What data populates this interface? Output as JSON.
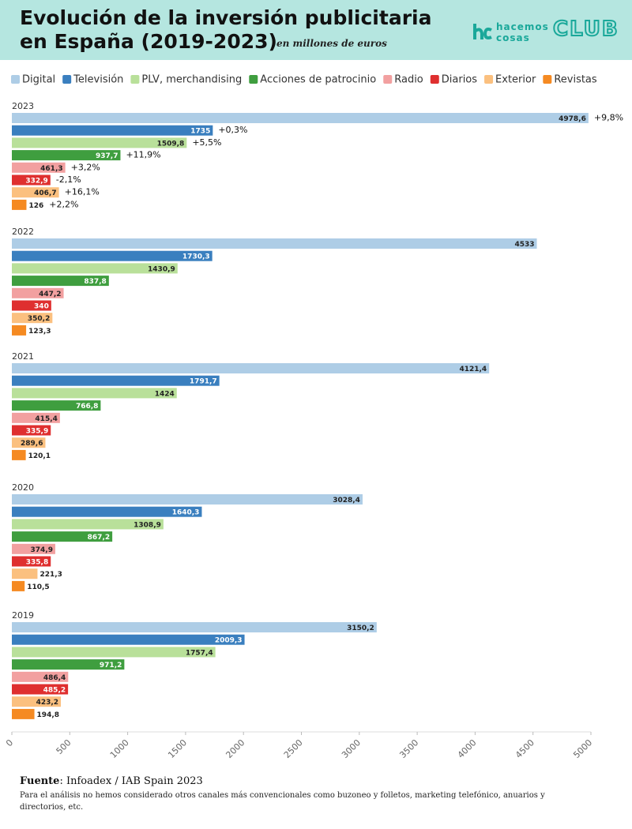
{
  "header": {
    "logo_lines": [
      "hacemos",
      "cosas"
    ],
    "club": "CLUB"
  },
  "chart_data": {
    "type": "hbar_grouped",
    "title_lines": [
      "Evolución de la inversión publicitaria",
      "en España (2019-2023)"
    ],
    "subtitle": "en millones de euros",
    "categories": [
      "2023",
      "2022",
      "2021",
      "2020",
      "2019"
    ],
    "series": [
      {
        "name": "Digital",
        "color": "#aecde6",
        "values": [
          4978.6,
          4533,
          4121.4,
          3028.4,
          3150.2
        ],
        "value_labels": [
          "4978,6",
          "4533",
          "4121,4",
          "3028,4",
          "3150,2"
        ],
        "annotations": [
          "+9,8%"
        ]
      },
      {
        "name": "Televisión",
        "color": "#3a7fbf",
        "values": [
          1735,
          1730.3,
          1791.7,
          1640.3,
          2009.3
        ],
        "value_labels": [
          "1735",
          "1730,3",
          "1791,7",
          "1640,3",
          "2009,3"
        ],
        "annotations": [
          "+0,3%"
        ]
      },
      {
        "name": "PLV, merchandising",
        "color": "#b9e09a",
        "values": [
          1509.8,
          1430.9,
          1424,
          1308.9,
          1757.4
        ],
        "value_labels": [
          "1509,8",
          "1430,9",
          "1424",
          "1308,9",
          "1757,4"
        ],
        "annotations": [
          "+5,5%"
        ]
      },
      {
        "name": "Acciones de patrocinio",
        "color": "#3f9e3f",
        "values": [
          937.7,
          837.8,
          766.8,
          867.2,
          971.2
        ],
        "value_labels": [
          "937,7",
          "837,8",
          "766,8",
          "867,2",
          "971,2"
        ],
        "annotations": [
          "+11,9%"
        ]
      },
      {
        "name": "Radio",
        "color": "#f2a0a0",
        "values": [
          461.3,
          447.2,
          415.4,
          374.9,
          486.4
        ],
        "value_labels": [
          "461,3",
          "447,2",
          "415,4",
          "374,9",
          "486,4"
        ],
        "annotations": [
          "+3,2%"
        ]
      },
      {
        "name": "Diarios",
        "color": "#df2f2f",
        "values": [
          332.9,
          340,
          335.9,
          335.8,
          485.2
        ],
        "value_labels": [
          "332,9",
          "340",
          "335,9",
          "335,8",
          "485,2"
        ],
        "annotations": [
          "-2,1%"
        ]
      },
      {
        "name": "Exterior",
        "color": "#fbc07f",
        "values": [
          406.7,
          350.2,
          289.6,
          221.3,
          423.2
        ],
        "value_labels": [
          "406,7",
          "350,2",
          "289,6",
          "221,3",
          "423,2"
        ],
        "annotations": [
          "+16,1%"
        ]
      },
      {
        "name": "Revistas",
        "color": "#f58a22",
        "values": [
          126,
          123.3,
          120.1,
          110.5,
          194.8
        ],
        "value_labels": [
          "126",
          "123,3",
          "120,1",
          "110,5",
          "194,8"
        ],
        "annotations": [
          "+2,2%"
        ]
      }
    ],
    "xlim": [
      0,
      5000
    ],
    "xticks": [
      0,
      500,
      1000,
      1500,
      2000,
      2500,
      3000,
      3500,
      4000,
      4500,
      5000
    ]
  },
  "footer": {
    "source_label": "Fuente",
    "source": ": Infoadex / IAB Spain 2023",
    "note": "Para el análisis no hemos considerado otros canales más convencionales como buzoneo y folletos, marketing telefónico, anuarios y directorios, etc."
  }
}
